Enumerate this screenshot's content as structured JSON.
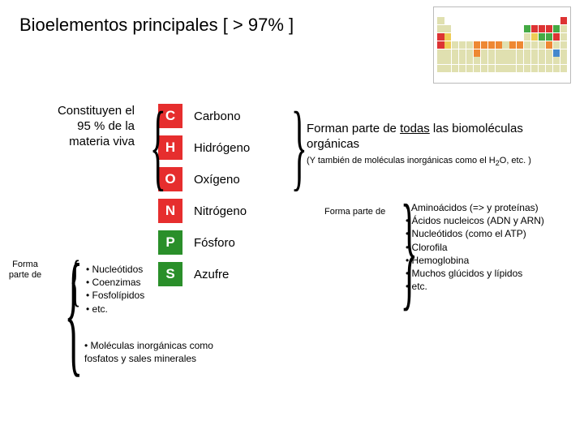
{
  "title": "Bioelementos principales [ > 97% ]",
  "left_note": "Constituyen el 95 % de la materia viva",
  "elements": [
    {
      "sym": "C",
      "name": "Carbono",
      "cls": "red"
    },
    {
      "sym": "H",
      "name": "Hidrógeno",
      "cls": "red"
    },
    {
      "sym": "O",
      "name": "Oxígeno",
      "cls": "red"
    },
    {
      "sym": "N",
      "name": "Nitrógeno",
      "cls": "red"
    },
    {
      "sym": "P",
      "name": "Fósforo",
      "cls": "grn"
    },
    {
      "sym": "S",
      "name": "Azufre",
      "cls": "grn"
    }
  ],
  "biomol": {
    "main_a": "Forman parte de ",
    "main_u": "todas",
    "main_b": " las biomoléculas orgánicas",
    "sub": "(Y también de moléculas inorgánicas como el H",
    "sub2": "2",
    "sub3": "O, etc. )"
  },
  "forma_n": "Forma parte de",
  "amino": [
    "• Aminoácidos (=> y proteínas)",
    "• Ácidos nucleicos (ADN y ARN)",
    "• Nucleótidos (como el ATP)",
    "• Clorofila",
    "• Hemoglobina",
    "• Muchos glúcidos y lípidos",
    "• etc."
  ],
  "nucleo": [
    "• Nucleótidos",
    "• Coenzimas",
    "• Fosfolípidos",
    "• etc."
  ],
  "inorg": "• Moléculas inorgánicas como fosfatos y sales minerales",
  "forma_parte": "Forma parte de",
  "colors": {
    "red": "#e62e2e",
    "green": "#2a8f2a",
    "bg": "#ffffff",
    "text": "#000000"
  }
}
